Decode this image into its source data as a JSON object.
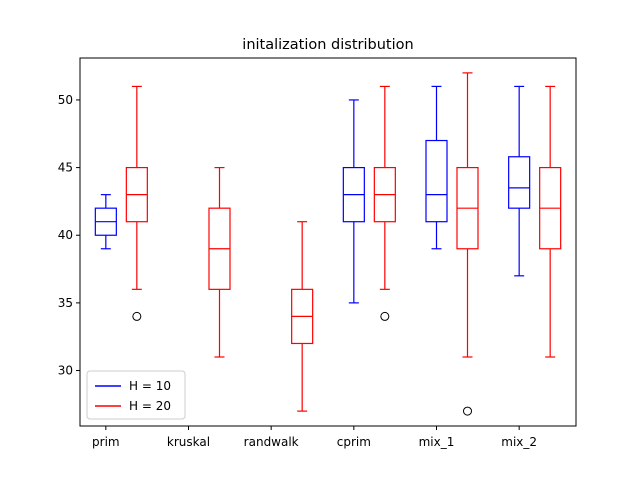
{
  "chart_data": {
    "type": "box",
    "title": "initalization distribution",
    "xlabel": "",
    "ylabel": "",
    "categories": [
      "prim",
      "kruskal",
      "randwalk",
      "cprim",
      "mix_1",
      "mix_2"
    ],
    "ylim": [
      25.9,
      53.1
    ],
    "yticks": [
      30,
      35,
      40,
      45,
      50
    ],
    "grid": false,
    "legend_position": "lower-left",
    "series": [
      {
        "name": "H = 10",
        "color": "#0000ff",
        "boxes": [
          {
            "category": "prim",
            "whislo": 39,
            "q1": 40,
            "med": 41,
            "q3": 42,
            "whishi": 43,
            "fliers": []
          },
          {
            "category": "kruskal",
            "missing": true
          },
          {
            "category": "randwalk",
            "missing": true
          },
          {
            "category": "cprim",
            "whislo": 35,
            "q1": 41,
            "med": 43,
            "q3": 45,
            "whishi": 50,
            "fliers": []
          },
          {
            "category": "mix_1",
            "whislo": 39,
            "q1": 41,
            "med": 43,
            "q3": 47,
            "whishi": 51,
            "fliers": []
          },
          {
            "category": "mix_2",
            "whislo": 37,
            "q1": 42,
            "med": 43.5,
            "q3": 45.8,
            "whishi": 51,
            "fliers": []
          }
        ]
      },
      {
        "name": "H = 20",
        "color": "#ff0000",
        "boxes": [
          {
            "category": "prim",
            "whislo": 36,
            "q1": 41,
            "med": 43,
            "q3": 45,
            "whishi": 51,
            "fliers": [
              34
            ]
          },
          {
            "category": "kruskal",
            "whislo": 31,
            "q1": 36,
            "med": 39,
            "q3": 42,
            "whishi": 45,
            "fliers": []
          },
          {
            "category": "randwalk",
            "whislo": 27,
            "q1": 32,
            "med": 34,
            "q3": 36,
            "whishi": 41,
            "fliers": []
          },
          {
            "category": "cprim",
            "whislo": 36,
            "q1": 41,
            "med": 43,
            "q3": 45,
            "whishi": 51,
            "fliers": [
              34
            ]
          },
          {
            "category": "mix_1",
            "whislo": 31,
            "q1": 39,
            "med": 42,
            "q3": 45,
            "whishi": 52,
            "fliers": [
              27
            ]
          },
          {
            "category": "mix_2",
            "whislo": 31,
            "q1": 39,
            "med": 42,
            "q3": 45,
            "whishi": 51,
            "fliers": []
          }
        ]
      }
    ]
  }
}
